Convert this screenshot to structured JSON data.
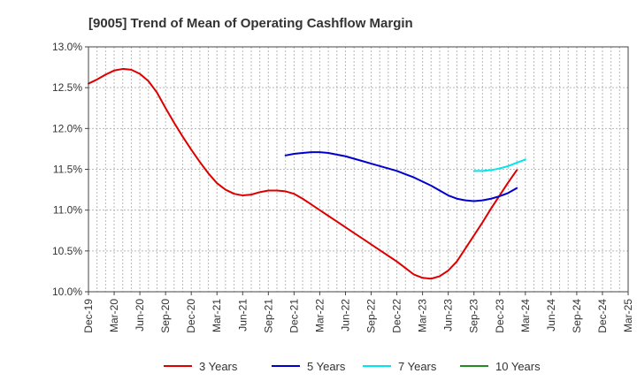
{
  "chart_data": {
    "type": "line",
    "title": "[9005]  Trend of Mean of Operating Cashflow Margin",
    "xlabel": "",
    "ylabel": "",
    "x_ticks": [
      "Dec-19",
      "Mar-20",
      "Jun-20",
      "Sep-20",
      "Dec-20",
      "Mar-21",
      "Jun-21",
      "Sep-21",
      "Dec-21",
      "Mar-22",
      "Jun-22",
      "Sep-22",
      "Dec-22",
      "Mar-23",
      "Jun-23",
      "Sep-23",
      "Dec-23",
      "Mar-24",
      "Jun-24",
      "Sep-24",
      "Dec-24",
      "Mar-25"
    ],
    "y_ticks": [
      "10.0%",
      "10.5%",
      "11.0%",
      "11.5%",
      "12.0%",
      "12.5%",
      "13.0%"
    ],
    "ylim": [
      10.0,
      13.0
    ],
    "grid": true,
    "legend_position": "bottom",
    "series": [
      {
        "name": "3 Years",
        "color": "#dd0000",
        "points": [
          [
            "Dec-19",
            12.55
          ],
          [
            "Jan-20",
            12.6
          ],
          [
            "Feb-20",
            12.66
          ],
          [
            "Mar-20",
            12.71
          ],
          [
            "Apr-20",
            12.73
          ],
          [
            "May-20",
            12.72
          ],
          [
            "Jun-20",
            12.67
          ],
          [
            "Jul-20",
            12.58
          ],
          [
            "Aug-20",
            12.44
          ],
          [
            "Sep-20",
            12.25
          ],
          [
            "Oct-20",
            12.07
          ],
          [
            "Nov-20",
            11.9
          ],
          [
            "Dec-20",
            11.74
          ],
          [
            "Jan-21",
            11.59
          ],
          [
            "Feb-21",
            11.45
          ],
          [
            "Mar-21",
            11.33
          ],
          [
            "Apr-21",
            11.25
          ],
          [
            "May-21",
            11.2
          ],
          [
            "Jun-21",
            11.18
          ],
          [
            "Jul-21",
            11.19
          ],
          [
            "Aug-21",
            11.22
          ],
          [
            "Sep-21",
            11.24
          ],
          [
            "Oct-21",
            11.24
          ],
          [
            "Nov-21",
            11.23
          ],
          [
            "Dec-21",
            11.2
          ],
          [
            "Jan-22",
            11.14
          ],
          [
            "Feb-22",
            11.07
          ],
          [
            "Mar-22",
            11.0
          ],
          [
            "Apr-22",
            10.93
          ],
          [
            "May-22",
            10.86
          ],
          [
            "Jun-22",
            10.79
          ],
          [
            "Jul-22",
            10.72
          ],
          [
            "Aug-22",
            10.65
          ],
          [
            "Sep-22",
            10.58
          ],
          [
            "Oct-22",
            10.51
          ],
          [
            "Nov-22",
            10.44
          ],
          [
            "Dec-22",
            10.37
          ],
          [
            "Jan-23",
            10.29
          ],
          [
            "Feb-23",
            10.21
          ],
          [
            "Mar-23",
            10.17
          ],
          [
            "Apr-23",
            10.16
          ],
          [
            "May-23",
            10.19
          ],
          [
            "Jun-23",
            10.26
          ],
          [
            "Jul-23",
            10.37
          ],
          [
            "Aug-23",
            10.53
          ],
          [
            "Sep-23",
            10.69
          ],
          [
            "Oct-23",
            10.85
          ],
          [
            "Nov-23",
            11.02
          ],
          [
            "Dec-23",
            11.18
          ],
          [
            "Jan-24",
            11.34
          ],
          [
            "Feb-24",
            11.49
          ]
        ]
      },
      {
        "name": "5 Years",
        "color": "#0000cc",
        "points": [
          [
            "Nov-21",
            11.67
          ],
          [
            "Dec-21",
            11.69
          ],
          [
            "Jan-22",
            11.7
          ],
          [
            "Feb-22",
            11.71
          ],
          [
            "Mar-22",
            11.71
          ],
          [
            "Apr-22",
            11.7
          ],
          [
            "May-22",
            11.68
          ],
          [
            "Jun-22",
            11.66
          ],
          [
            "Jul-22",
            11.63
          ],
          [
            "Aug-22",
            11.6
          ],
          [
            "Sep-22",
            11.57
          ],
          [
            "Oct-22",
            11.54
          ],
          [
            "Nov-22",
            11.51
          ],
          [
            "Dec-22",
            11.48
          ],
          [
            "Jan-23",
            11.44
          ],
          [
            "Feb-23",
            11.4
          ],
          [
            "Mar-23",
            11.35
          ],
          [
            "Apr-23",
            11.3
          ],
          [
            "May-23",
            11.24
          ],
          [
            "Jun-23",
            11.18
          ],
          [
            "Jul-23",
            11.14
          ],
          [
            "Aug-23",
            11.12
          ],
          [
            "Sep-23",
            11.11
          ],
          [
            "Oct-23",
            11.12
          ],
          [
            "Nov-23",
            11.14
          ],
          [
            "Dec-23",
            11.17
          ],
          [
            "Jan-24",
            11.21
          ],
          [
            "Feb-24",
            11.27
          ]
        ]
      },
      {
        "name": "7 Years",
        "color": "#00e5ee",
        "points": [
          [
            "Sep-23",
            11.48
          ],
          [
            "Oct-23",
            11.48
          ],
          [
            "Nov-23",
            11.49
          ],
          [
            "Dec-23",
            11.51
          ],
          [
            "Jan-24",
            11.54
          ],
          [
            "Feb-24",
            11.58
          ],
          [
            "Mar-24",
            11.62
          ]
        ]
      },
      {
        "name": "10 Years",
        "color": "#228b22",
        "points": []
      }
    ]
  }
}
